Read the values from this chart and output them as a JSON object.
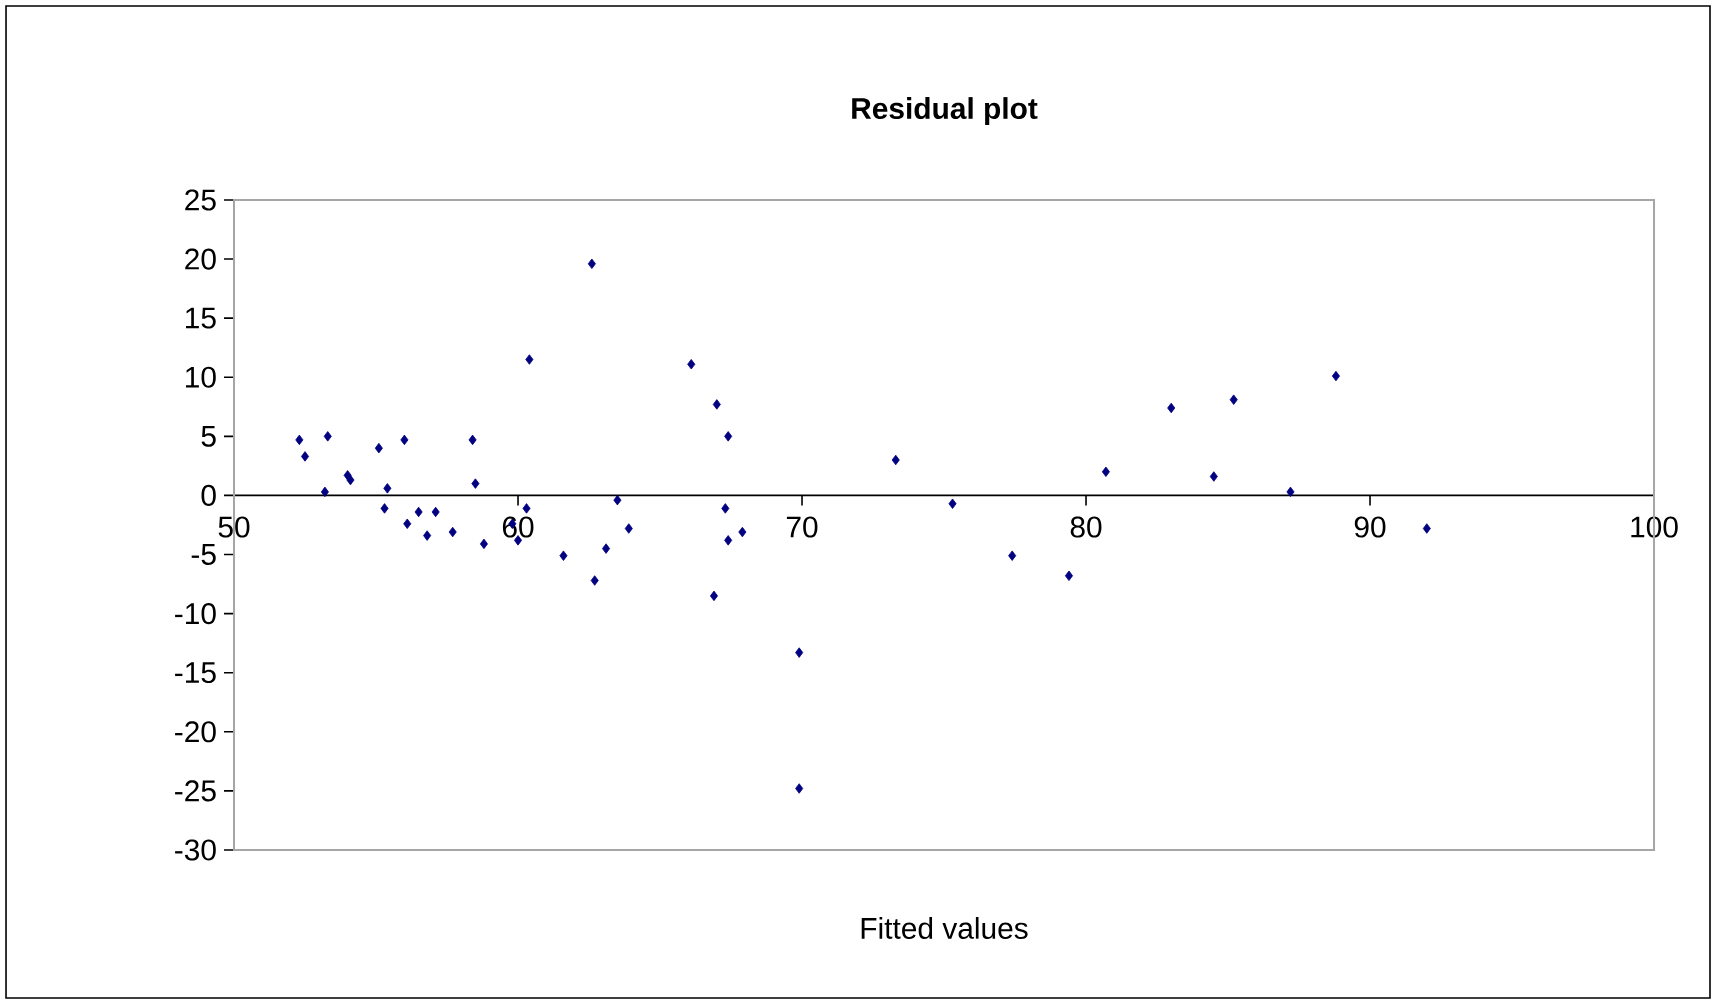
{
  "chart_data": {
    "type": "scatter",
    "title": "Residual plot",
    "xlabel": "Fitted values",
    "marker": "diamond",
    "grid": false,
    "xlim": [
      50,
      100
    ],
    "xticks": [
      50,
      60,
      70,
      80,
      90,
      100
    ],
    "ylim": [
      -30,
      25
    ],
    "yticks": [
      -30,
      -25,
      -20,
      -15,
      -10,
      -5,
      0,
      5,
      10,
      15,
      20,
      25
    ],
    "series": [
      {
        "color": "#000080",
        "x": [
          52.3,
          52.5,
          53.3,
          53.2,
          54.0,
          54.1,
          55.1,
          55.4,
          55.3,
          56.0,
          56.1,
          56.5,
          56.8,
          57.1,
          57.7,
          58.4,
          58.5,
          58.8,
          59.8,
          60.0,
          60.3,
          60.4,
          61.6,
          62.7,
          63.1,
          63.5,
          63.9,
          62.6,
          66.1,
          67.0,
          67.4,
          73.3,
          67.3,
          67.4,
          67.9,
          66.9,
          69.9,
          69.9,
          75.3,
          77.4,
          79.4,
          80.7,
          83.0,
          84.5,
          85.2,
          87.2,
          88.8,
          92.0
        ],
        "values": [
          4.7,
          3.3,
          5.0,
          0.3,
          1.7,
          1.3,
          4.0,
          0.6,
          -1.1,
          4.7,
          -2.4,
          -1.4,
          -3.4,
          -1.4,
          -3.1,
          4.7,
          1.0,
          -4.1,
          -2.4,
          -3.8,
          -1.1,
          11.5,
          -5.1,
          -7.2,
          -4.5,
          -0.4,
          -2.8,
          19.6,
          11.1,
          7.7,
          5.0,
          3.0,
          -1.1,
          -3.8,
          -3.1,
          -8.5,
          -13.3,
          -24.8,
          -0.7,
          -5.1,
          -6.8,
          2.0,
          7.4,
          1.6,
          8.1,
          0.3,
          10.1,
          -2.8
        ]
      }
    ]
  }
}
